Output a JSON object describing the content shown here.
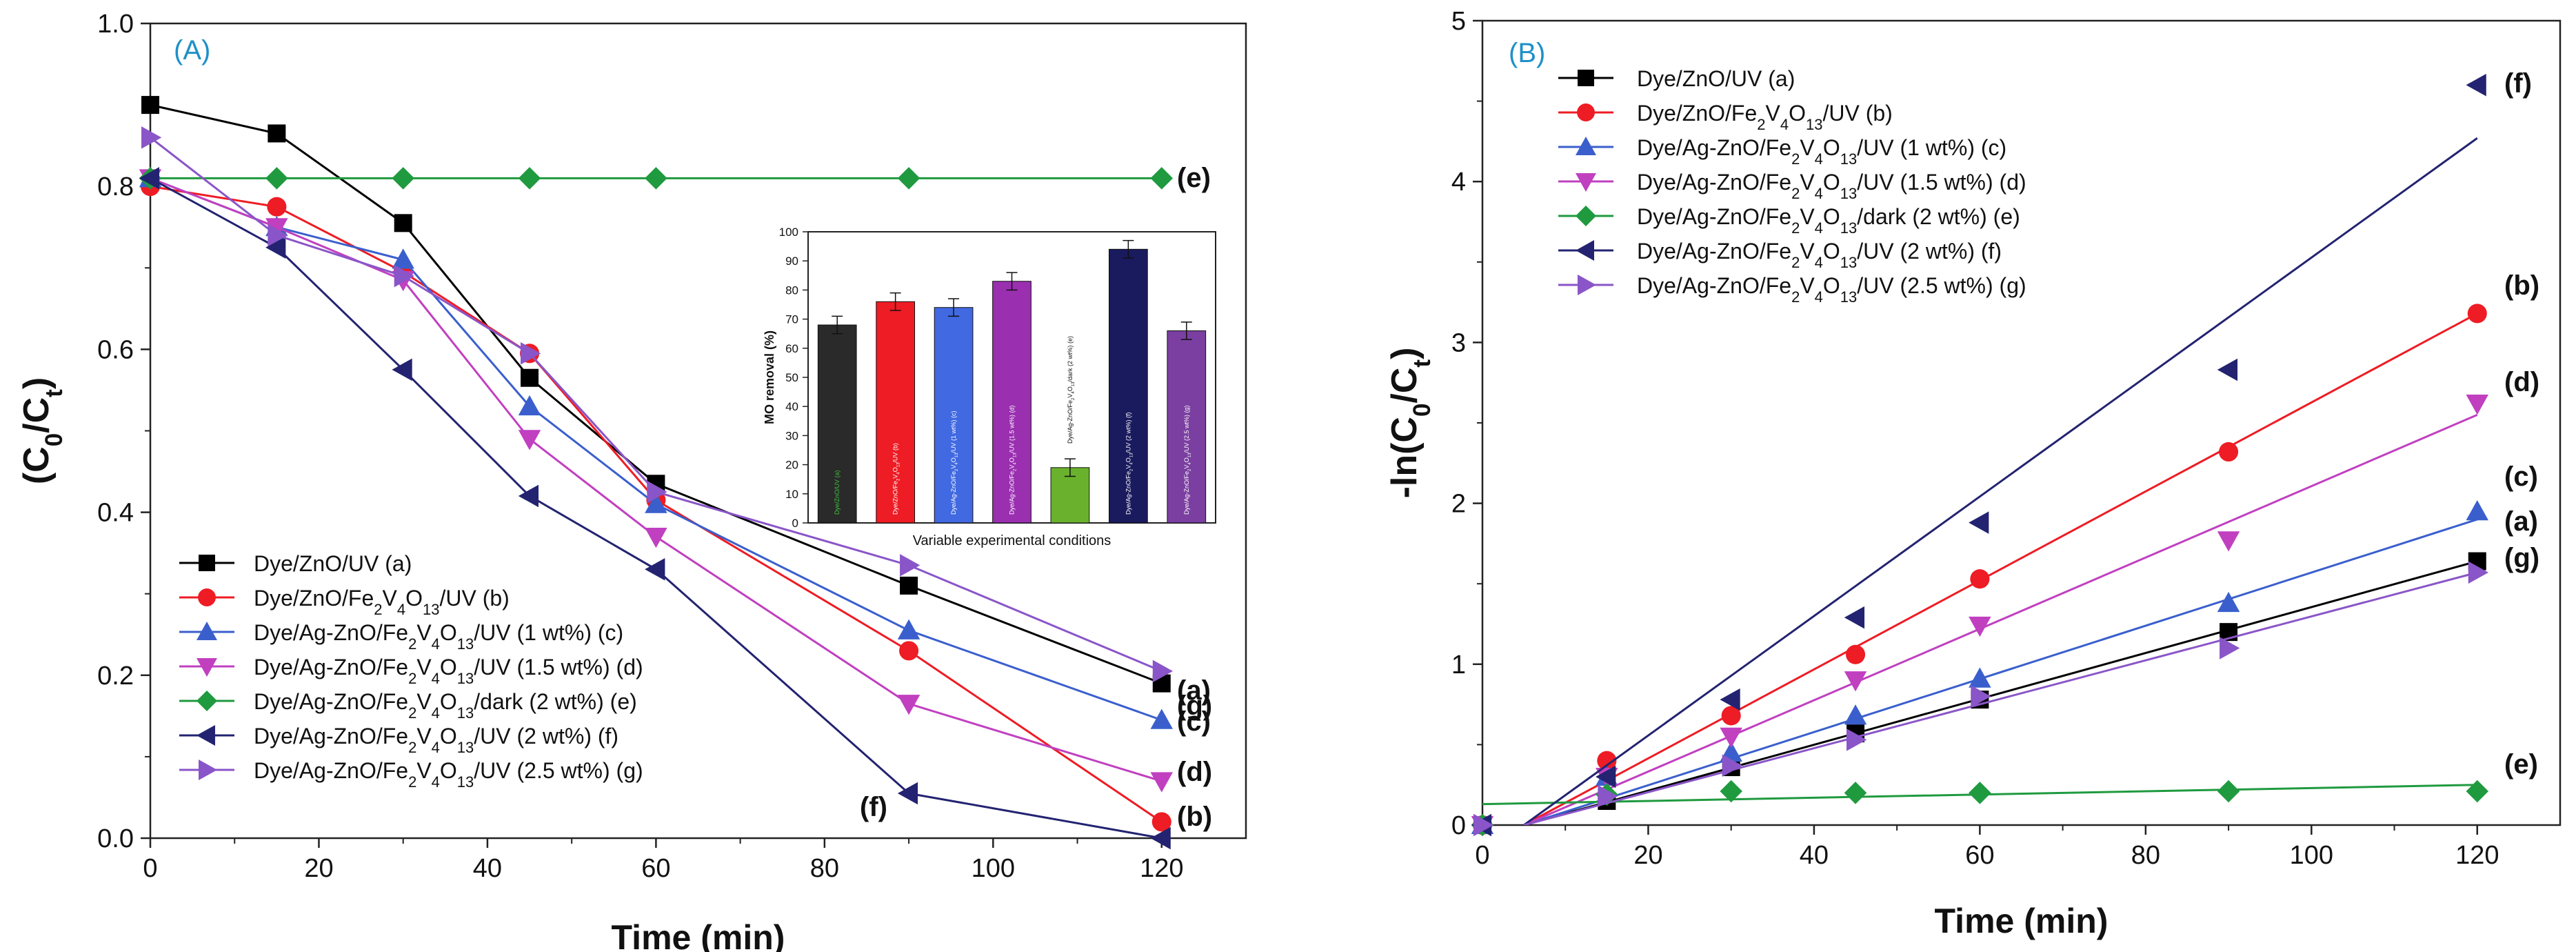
{
  "chart_data": [
    {
      "id": "A",
      "type": "line",
      "panel_label": "(A)",
      "xlabel": "Time (min)",
      "ylabel": "(C0/Ct)",
      "xlim": [
        0,
        130
      ],
      "ylim": [
        0,
        1.0
      ],
      "x_ticks": [
        0,
        20,
        40,
        60,
        80,
        100,
        120
      ],
      "x_tick_labels": [
        "0",
        "20",
        "40",
        "60",
        "80",
        "100",
        "120"
      ],
      "y_ticks": [
        0,
        0.2,
        0.4,
        0.6,
        0.8,
        1.0
      ],
      "y_tick_labels": [
        "0.0",
        "0.2",
        "0.4",
        "0.6",
        "0.8",
        "1.0"
      ],
      "legend_position": "bottom-left",
      "x": [
        0,
        15,
        30,
        45,
        60,
        90,
        120
      ],
      "series": [
        {
          "key": "a",
          "name": "Dye/ZnO/UV (a)",
          "color": "#000000",
          "marker": "square",
          "values": [
            0.9,
            0.865,
            0.755,
            0.565,
            0.435,
            0.31,
            0.19
          ],
          "end_label": "(a)"
        },
        {
          "key": "b",
          "name": "Dye/ZnO/Fe2V4O13/UV (b)",
          "color": "#ee1c24",
          "marker": "circle",
          "values": [
            0.8,
            0.775,
            0.695,
            0.595,
            0.415,
            0.23,
            0.02
          ],
          "end_label": "(b)"
        },
        {
          "key": "c",
          "name": "Dye/Ag-ZnO/Fe2V4O13/UV (1 wt%) (c)",
          "color": "#3a5fcd",
          "marker": "triangle-up",
          "values": [
            0.81,
            0.75,
            0.71,
            0.53,
            0.41,
            0.255,
            0.145
          ],
          "end_label": "(c)"
        },
        {
          "key": "d",
          "name": "Dye/Ag-ZnO/Fe2V4O13/UV (1.5 wt%) (d)",
          "color": "#c040c0",
          "marker": "triangle-down",
          "values": [
            0.81,
            0.75,
            0.685,
            0.49,
            0.37,
            0.165,
            0.07
          ],
          "end_label": "(d)"
        },
        {
          "key": "e",
          "name": "Dye/Ag-ZnO/Fe2V4O13/dark (2 wt%) (e)",
          "color": "#1f9a3f",
          "marker": "diamond",
          "values": [
            0.81,
            0.81,
            0.81,
            0.81,
            0.81,
            0.81,
            0.81
          ],
          "end_label": "(e)"
        },
        {
          "key": "f",
          "name": "Dye/Ag-ZnO/Fe2V4O13/UV (2 wt%) (f)",
          "color": "#232371",
          "marker": "triangle-left",
          "values": [
            0.81,
            0.725,
            0.575,
            0.42,
            0.33,
            0.055,
            0.0
          ],
          "end_label": "(f)"
        },
        {
          "key": "g",
          "name": "Dye/Ag-ZnO/Fe2V4O13/UV (2.5 wt%) (g)",
          "color": "#8a55c8",
          "marker": "triangle-right",
          "values": [
            0.86,
            0.74,
            0.69,
            0.595,
            0.425,
            0.335,
            0.205
          ],
          "end_label": "(g)"
        }
      ],
      "inset": {
        "type": "bar",
        "xlabel": "Variable experimental conditions",
        "ylabel": "MO removal (%)",
        "ylim": [
          0,
          100
        ],
        "y_ticks": [
          0,
          10,
          20,
          30,
          40,
          50,
          60,
          70,
          80,
          90,
          100
        ],
        "y_tick_labels": [
          "0",
          "10",
          "20",
          "30",
          "40",
          "50",
          "60",
          "70",
          "80",
          "90",
          "100"
        ],
        "categories": [
          "Dye/ZnO/UV (a)",
          "Dye/ZnO/Fe2V4O13/UV (b)",
          "Dye/Ag-ZnO/Fe2V4O13/UV (1 wt%) (c)",
          "Dye/Ag-ZnO/Fe2V4O13/UV (1.5 wt%) (d)",
          "Dye/Ag-ZnO/Fe2V4O13/dark (2 wt%) (e)",
          "Dye/Ag-ZnO/Fe2V4O13/UV (2 wt%) (f)",
          "Dye/Ag-ZnO/Fe2V4O13/UV (2.5 wt%) (g)"
        ],
        "values": [
          68,
          76,
          74,
          83,
          19,
          94,
          66
        ],
        "errors": [
          3,
          3,
          3,
          3,
          3,
          3,
          3
        ],
        "colors": [
          "#2a2a2a",
          "#ee1c24",
          "#4169e1",
          "#9a2fb0",
          "#6ab22e",
          "#1a1a5e",
          "#7a3fa0"
        ],
        "label_colors": [
          "#40c040",
          "#ffffff",
          "#ffffff",
          "#ffffff",
          "#ffffff",
          "#ffffff",
          "#ffffff"
        ]
      }
    },
    {
      "id": "B",
      "type": "scatter",
      "panel_label": "(B)",
      "xlabel": "Time (min)",
      "ylabel": "-ln(C0/Ct)",
      "xlim": [
        0,
        130
      ],
      "ylim": [
        0,
        5
      ],
      "x_ticks": [
        0,
        20,
        40,
        60,
        80,
        100,
        120
      ],
      "x_tick_labels": [
        "0",
        "20",
        "40",
        "60",
        "80",
        "100",
        "120"
      ],
      "y_ticks": [
        0,
        1,
        2,
        3,
        4,
        5
      ],
      "y_tick_labels": [
        "0",
        "1",
        "2",
        "3",
        "4",
        "5"
      ],
      "legend_position": "top-left",
      "x": [
        0,
        15,
        30,
        45,
        60,
        90,
        120
      ],
      "series": [
        {
          "key": "a",
          "name": "Dye/ZnO/UV (a)",
          "color": "#000000",
          "marker": "square",
          "values": [
            0,
            0.15,
            0.36,
            0.57,
            0.78,
            1.2,
            1.64
          ],
          "fit": [
            [
              5,
              0
            ],
            [
              120,
              1.64
            ]
          ],
          "end_label": "(a)"
        },
        {
          "key": "b",
          "name": "Dye/ZnO/Fe2V4O13/UV (b)",
          "color": "#ee1c24",
          "marker": "circle",
          "values": [
            0,
            0.4,
            0.68,
            1.06,
            1.53,
            2.32,
            3.18
          ],
          "fit": [
            [
              5,
              0
            ],
            [
              120,
              3.18
            ]
          ],
          "end_label": "(b)"
        },
        {
          "key": "c",
          "name": "Dye/Ag-ZnO/Fe2V4O13/UV (1 wt%) (c)",
          "color": "#3a5fcd",
          "marker": "triangle-up",
          "values": [
            0,
            0.3,
            0.45,
            0.68,
            0.91,
            1.38,
            1.95
          ],
          "fit": [
            [
              5,
              0
            ],
            [
              120,
              1.9
            ]
          ],
          "end_label": "(c)"
        },
        {
          "key": "d",
          "name": "Dye/Ag-ZnO/Fe2V4O13/UV (1.5 wt%) (d)",
          "color": "#c040c0",
          "marker": "triangle-down",
          "values": [
            0,
            0.3,
            0.55,
            0.9,
            1.24,
            1.77,
            2.62
          ],
          "fit": [
            [
              5,
              0
            ],
            [
              120,
              2.55
            ]
          ],
          "end_label": "(d)"
        },
        {
          "key": "e",
          "name": "Dye/Ag-ZnO/Fe2V4O13/dark (2 wt%) (e)",
          "color": "#1f9a3f",
          "marker": "diamond",
          "values": [
            0,
            0.19,
            0.21,
            0.2,
            0.2,
            0.21,
            0.21
          ],
          "fit": [
            [
              0,
              0.13
            ],
            [
              120,
              0.25
            ]
          ],
          "end_label": "(e)"
        },
        {
          "key": "f",
          "name": "Dye/Ag-ZnO/Fe2V4O13/UV (2 wt%) (f)",
          "color": "#232371",
          "marker": "triangle-left",
          "values": [
            0,
            0.3,
            0.78,
            1.29,
            1.88,
            2.83,
            4.6
          ],
          "fit": [
            [
              5,
              0
            ],
            [
              120,
              4.27
            ]
          ],
          "end_label": "(f)"
        },
        {
          "key": "g",
          "name": "Dye/Ag-ZnO/Fe2V4O13/UV (2.5 wt%) (g)",
          "color": "#8a55c8",
          "marker": "triangle-right",
          "values": [
            0,
            0.18,
            0.37,
            0.53,
            0.8,
            1.1,
            1.57
          ],
          "fit": [
            [
              5,
              0
            ],
            [
              120,
              1.57
            ]
          ],
          "end_label": "(g)"
        }
      ]
    }
  ]
}
